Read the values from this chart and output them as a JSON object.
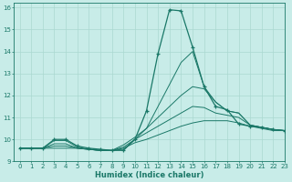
{
  "xlabel": "Humidex (Indice chaleur)",
  "ylabel": "",
  "bg_color": "#c8ece8",
  "grid_color": "#aad8d0",
  "line_color": "#1a7868",
  "xlim": [
    -0.5,
    23
  ],
  "ylim": [
    9,
    16.2
  ],
  "x_ticks": [
    0,
    1,
    2,
    3,
    4,
    5,
    6,
    7,
    8,
    9,
    10,
    11,
    12,
    13,
    14,
    15,
    16,
    17,
    18,
    19,
    20,
    21,
    22,
    23
  ],
  "y_ticks": [
    9,
    10,
    11,
    12,
    13,
    14,
    15,
    16
  ],
  "series": [
    [
      9.6,
      9.6,
      9.6,
      10.0,
      10.0,
      9.7,
      9.6,
      9.55,
      9.5,
      9.5,
      10.0,
      11.3,
      13.9,
      15.9,
      15.85,
      14.2,
      12.4,
      11.5,
      11.35,
      10.7,
      10.6,
      10.55,
      10.45,
      10.4
    ],
    [
      9.6,
      9.6,
      9.6,
      9.95,
      9.95,
      9.65,
      9.55,
      9.5,
      9.5,
      9.55,
      10.0,
      10.5,
      11.5,
      12.5,
      13.5,
      14.0,
      12.4,
      11.7,
      11.3,
      11.2,
      10.65,
      10.55,
      10.45,
      10.4
    ],
    [
      9.6,
      9.6,
      9.6,
      9.8,
      9.8,
      9.6,
      9.55,
      9.5,
      9.5,
      9.75,
      10.1,
      10.5,
      11.0,
      11.5,
      12.0,
      12.4,
      12.3,
      11.7,
      11.3,
      11.2,
      10.65,
      10.55,
      10.45,
      10.4
    ],
    [
      9.6,
      9.6,
      9.6,
      9.7,
      9.7,
      9.6,
      9.55,
      9.5,
      9.5,
      9.65,
      10.0,
      10.3,
      10.6,
      10.9,
      11.2,
      11.5,
      11.45,
      11.2,
      11.1,
      11.0,
      10.65,
      10.55,
      10.45,
      10.4
    ],
    [
      9.6,
      9.6,
      9.6,
      9.6,
      9.6,
      9.6,
      9.55,
      9.5,
      9.5,
      9.6,
      9.85,
      10.0,
      10.2,
      10.4,
      10.6,
      10.75,
      10.85,
      10.85,
      10.85,
      10.75,
      10.6,
      10.5,
      10.4,
      10.4
    ]
  ]
}
